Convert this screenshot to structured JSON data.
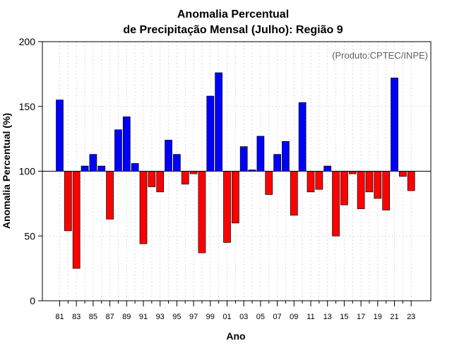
{
  "chart_data": {
    "type": "bar",
    "title": "Anomalia Percentual",
    "subtitle": "de Precipitação Mensal (Julho): Região 9",
    "xlabel": "Ano",
    "ylabel": "Anomalia Percentual (%)",
    "source": "(Produto:CPTEC/INPE)",
    "ylim": [
      0,
      200
    ],
    "yticks": [
      0,
      50,
      100,
      150,
      200
    ],
    "baseline": 100,
    "grid": true,
    "above_color": "#0000ff",
    "below_color": "#ff0000",
    "categories": [
      "81",
      "82",
      "83",
      "84",
      "85",
      "86",
      "87",
      "88",
      "89",
      "90",
      "91",
      "92",
      "93",
      "94",
      "95",
      "96",
      "97",
      "98",
      "99",
      "00",
      "01",
      "02",
      "03",
      "04",
      "05",
      "06",
      "07",
      "08",
      "09",
      "10",
      "11",
      "12",
      "13",
      "14",
      "15",
      "16",
      "17",
      "18",
      "19",
      "20",
      "21",
      "22",
      "23"
    ],
    "xtick_labels": [
      "81",
      "83",
      "85",
      "87",
      "89",
      "91",
      "93",
      "95",
      "97",
      "99",
      "01",
      "03",
      "05",
      "07",
      "09",
      "11",
      "13",
      "15",
      "17",
      "19",
      "21",
      "23"
    ],
    "values": [
      155,
      54,
      25,
      104,
      113,
      104,
      63,
      132,
      142,
      106,
      44,
      88,
      84,
      124,
      113,
      90,
      98,
      37,
      158,
      176,
      45,
      60,
      119,
      101,
      127,
      82,
      113,
      123,
      66,
      153,
      84,
      86,
      104,
      50,
      74,
      98,
      71,
      84,
      79,
      70,
      172,
      96,
      85
    ]
  }
}
